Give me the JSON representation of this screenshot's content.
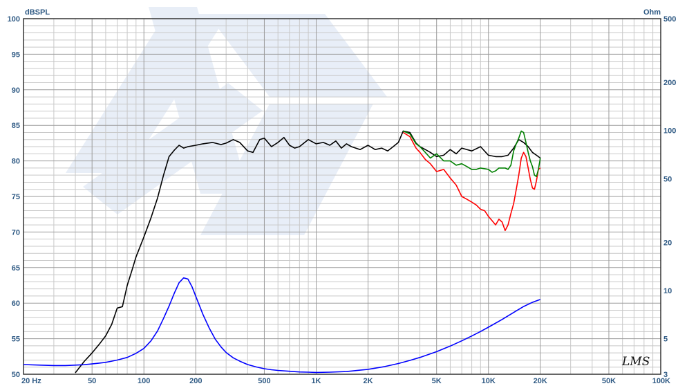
{
  "chart_data": {
    "type": "line",
    "title": "",
    "xlabel": "",
    "ylabel": "dBSPL",
    "y2label": "Ohm",
    "x_scale": "log",
    "xlim": [
      20,
      100000
    ],
    "ylim": [
      50,
      100
    ],
    "y2lim": [
      3,
      500
    ],
    "y2_scale": "log",
    "grid": true,
    "x_ticks": [
      {
        "value": 20,
        "label": "20  Hz"
      },
      {
        "value": 50,
        "label": "50"
      },
      {
        "value": 100,
        "label": "100"
      },
      {
        "value": 200,
        "label": "200"
      },
      {
        "value": 500,
        "label": "500"
      },
      {
        "value": 1000,
        "label": "1K"
      },
      {
        "value": 2000,
        "label": "2K"
      },
      {
        "value": 5000,
        "label": "5K"
      },
      {
        "value": 10000,
        "label": "10K"
      },
      {
        "value": 20000,
        "label": "20K"
      },
      {
        "value": 50000,
        "label": "50K"
      },
      {
        "value": 100000,
        "label": "100K"
      }
    ],
    "y_ticks": [
      {
        "value": 50,
        "label": "50"
      },
      {
        "value": 55,
        "label": "55"
      },
      {
        "value": 60,
        "label": "60"
      },
      {
        "value": 65,
        "label": "65"
      },
      {
        "value": 70,
        "label": "70"
      },
      {
        "value": 75,
        "label": "75"
      },
      {
        "value": 80,
        "label": "80"
      },
      {
        "value": 85,
        "label": "85"
      },
      {
        "value": 90,
        "label": "90"
      },
      {
        "value": 95,
        "label": "95"
      },
      {
        "value": 100,
        "label": "100"
      }
    ],
    "y2_ticks": [
      {
        "value": 3,
        "label": "3"
      },
      {
        "value": 5,
        "label": "5"
      },
      {
        "value": 10,
        "label": "10"
      },
      {
        "value": 20,
        "label": "20"
      },
      {
        "value": 50,
        "label": "50"
      },
      {
        "value": 100,
        "label": "100"
      },
      {
        "value": 200,
        "label": "200"
      },
      {
        "value": 500,
        "label": "500"
      }
    ],
    "series": [
      {
        "axis": "y",
        "color": "#000000",
        "x": [
          40,
          45,
          50,
          55,
          60,
          65,
          70,
          75,
          80,
          85,
          90,
          100,
          110,
          120,
          130,
          140,
          150,
          160,
          170,
          180,
          200,
          220,
          250,
          280,
          300,
          330,
          360,
          400,
          430,
          470,
          500,
          550,
          600,
          650,
          700,
          750,
          800,
          900,
          1000,
          1100,
          1200,
          1300,
          1400,
          1500,
          1600,
          1800,
          2000,
          2200,
          2400,
          2600,
          2800,
          3000,
          3200,
          3500,
          3800,
          4000,
          4300,
          4600,
          5000,
          5500,
          6000,
          6500,
          7000,
          8000,
          9000,
          10000,
          11000,
          12000,
          13000,
          14000,
          15000,
          16000,
          17000,
          18000,
          19000,
          20000
        ],
        "y": [
          50.2,
          51.8,
          53.0,
          54.2,
          55.4,
          57.0,
          59.3,
          59.5,
          62.5,
          64.5,
          66.5,
          69.3,
          72.0,
          74.8,
          78.0,
          80.6,
          81.5,
          82.2,
          81.8,
          82.0,
          82.2,
          82.4,
          82.6,
          82.3,
          82.5,
          83.0,
          82.6,
          81.4,
          81.2,
          83.0,
          83.2,
          82.0,
          82.6,
          83.3,
          82.2,
          81.8,
          82.0,
          83.0,
          82.4,
          82.6,
          82.2,
          82.8,
          81.8,
          82.4,
          82.0,
          81.6,
          82.2,
          81.6,
          81.8,
          81.4,
          82.0,
          82.6,
          84.2,
          84.0,
          82.5,
          82.0,
          81.6,
          81.2,
          80.6,
          80.8,
          81.6,
          81.0,
          81.8,
          81.4,
          82.0,
          80.8,
          80.6,
          80.6,
          80.8,
          81.8,
          83.0,
          82.6,
          82.0,
          81.2,
          80.8,
          80.4
        ]
      },
      {
        "axis": "y",
        "color": "#ff0000",
        "x": [
          3200,
          3500,
          3800,
          4000,
          4300,
          4600,
          5000,
          5500,
          6000,
          6500,
          7000,
          7500,
          8000,
          8500,
          9000,
          9500,
          10000,
          10500,
          11000,
          11500,
          12000,
          12500,
          13000,
          13500,
          14000,
          14500,
          15000,
          15500,
          16000,
          16500,
          17000,
          17500,
          18000,
          18500,
          19000,
          19500,
          20000
        ],
        "y": [
          84.0,
          83.4,
          81.8,
          81.2,
          80.2,
          79.6,
          78.5,
          78.8,
          77.6,
          76.6,
          75.0,
          74.6,
          74.2,
          73.8,
          73.2,
          73.0,
          72.2,
          71.6,
          71.0,
          71.8,
          71.4,
          70.2,
          71.0,
          72.6,
          74.0,
          76.0,
          78.0,
          80.4,
          81.2,
          80.6,
          79.0,
          77.4,
          76.2,
          76.0,
          77.2,
          78.8,
          79.0
        ]
      },
      {
        "axis": "y",
        "color": "#008000",
        "x": [
          3200,
          3500,
          3800,
          4000,
          4300,
          4600,
          5000,
          5500,
          6000,
          6500,
          7000,
          7500,
          8000,
          8500,
          9000,
          9500,
          10000,
          10500,
          11000,
          11500,
          12000,
          12500,
          13000,
          13500,
          14000,
          14500,
          15000,
          15500,
          16000,
          16500,
          17000,
          17500,
          18000,
          18500,
          19000,
          19500,
          20000
        ],
        "y": [
          84.2,
          83.8,
          82.4,
          82.0,
          81.2,
          80.4,
          81.0,
          80.0,
          80.0,
          79.4,
          79.6,
          79.2,
          78.8,
          78.8,
          79.0,
          78.9,
          78.8,
          78.4,
          78.6,
          79.0,
          79.0,
          79.0,
          78.8,
          79.4,
          81.4,
          82.4,
          83.2,
          84.2,
          84.0,
          82.6,
          81.2,
          80.0,
          79.2,
          78.0,
          77.8,
          78.8,
          80.4
        ]
      },
      {
        "axis": "y2",
        "color": "#0000ff",
        "x": [
          20,
          25,
          30,
          35,
          40,
          45,
          50,
          55,
          60,
          65,
          70,
          80,
          90,
          100,
          110,
          120,
          130,
          140,
          150,
          160,
          170,
          180,
          190,
          200,
          220,
          240,
          260,
          280,
          300,
          330,
          360,
          400,
          450,
          500,
          550,
          600,
          700,
          800,
          900,
          1000,
          1200,
          1500,
          1800,
          2000,
          2500,
          3000,
          3500,
          4000,
          5000,
          6000,
          7000,
          8000,
          9000,
          10000,
          12000,
          14000,
          16000,
          18000,
          20000
        ],
        "y": [
          3.45,
          3.42,
          3.4,
          3.4,
          3.42,
          3.44,
          3.48,
          3.52,
          3.56,
          3.62,
          3.68,
          3.82,
          4.05,
          4.35,
          4.85,
          5.6,
          6.7,
          8.0,
          9.6,
          11.2,
          12.0,
          11.8,
          10.6,
          9.2,
          7.1,
          5.8,
          4.95,
          4.45,
          4.1,
          3.8,
          3.62,
          3.45,
          3.33,
          3.25,
          3.2,
          3.17,
          3.13,
          3.1,
          3.09,
          3.08,
          3.09,
          3.12,
          3.18,
          3.22,
          3.35,
          3.5,
          3.66,
          3.82,
          4.15,
          4.5,
          4.85,
          5.2,
          5.55,
          5.9,
          6.6,
          7.3,
          7.95,
          8.45,
          8.8
        ]
      }
    ]
  },
  "logo": "LMS"
}
